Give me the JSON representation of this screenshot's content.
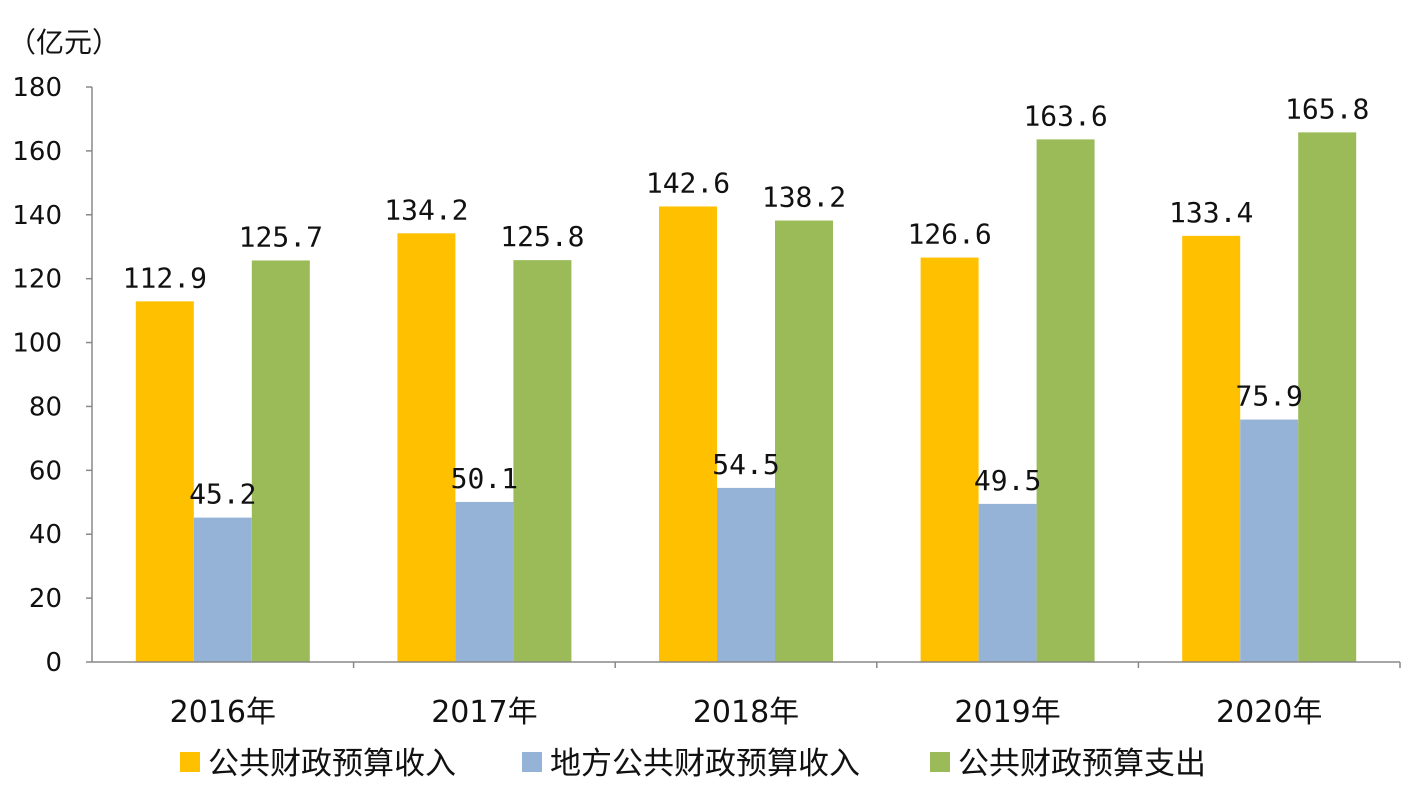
{
  "chart_data": {
    "type": "bar",
    "unit_label": "（亿元）",
    "categories": [
      "2016年",
      "2017年",
      "2018年",
      "2019年",
      "2020年"
    ],
    "series": [
      {
        "name": "公共财政预算收入",
        "color": "#FFC000",
        "values": [
          112.9,
          134.2,
          142.6,
          126.6,
          133.4
        ],
        "labels": [
          "112.9",
          "134.2",
          "142.6",
          "126.6",
          "133.4"
        ]
      },
      {
        "name": "地方公共财政预算收入",
        "color": "#95B3D7",
        "values": [
          45.2,
          50.1,
          54.5,
          49.5,
          75.9
        ],
        "labels": [
          "45.2",
          "50.1",
          "54.5",
          "49.5",
          "75.9"
        ]
      },
      {
        "name": "公共财政预算支出",
        "color": "#9BBB59",
        "values": [
          125.7,
          125.8,
          138.2,
          163.6,
          165.8
        ],
        "labels": [
          "125.7",
          "125.8",
          "138.2",
          "163.6",
          "165.8"
        ]
      }
    ],
    "ylim": [
      0,
      180
    ],
    "yticks": [
      "0",
      "20",
      "40",
      "60",
      "80",
      "100",
      "120",
      "140",
      "160",
      "180"
    ],
    "grid": false,
    "legend": "bottom"
  }
}
